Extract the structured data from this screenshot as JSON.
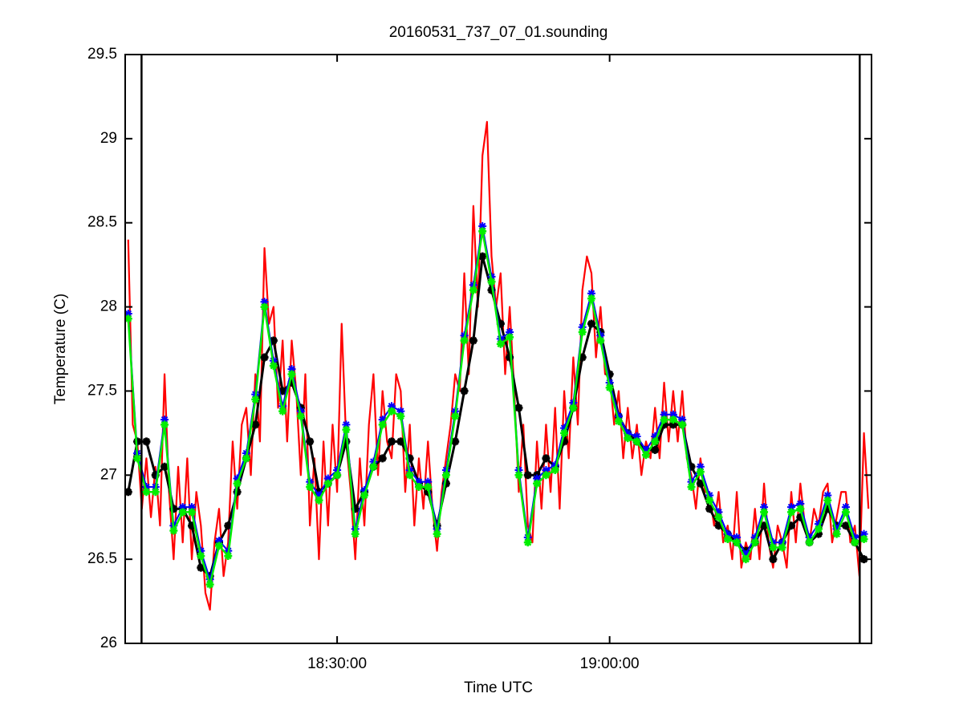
{
  "chart_data": {
    "type": "line",
    "title": "20160531_737_07_01.sounding",
    "x_label": "Time UTC",
    "y_label": "Temperature (C)",
    "xlim": [
      "18:06:40",
      "19:28:50"
    ],
    "xticks": [
      "18:30:00",
      "19:00:00"
    ],
    "ylim": [
      26,
      29.5
    ],
    "yticks": [
      26,
      26.5,
      27,
      27.5,
      28,
      28.5,
      29,
      29.5
    ],
    "vlines": [
      "18:08:28",
      "19:27:32"
    ],
    "x": [
      "18:07:00",
      "18:08:00",
      "18:09:00",
      "18:10:00",
      "18:11:00",
      "18:12:00",
      "18:13:00",
      "18:14:00",
      "18:15:00",
      "18:16:00",
      "18:17:00",
      "18:18:00",
      "18:19:00",
      "18:20:00",
      "18:21:00",
      "18:22:00",
      "18:23:00",
      "18:24:00",
      "18:25:00",
      "18:26:00",
      "18:27:00",
      "18:28:00",
      "18:29:00",
      "18:30:00",
      "18:31:00",
      "18:32:00",
      "18:33:00",
      "18:34:00",
      "18:35:00",
      "18:36:00",
      "18:37:00",
      "18:38:00",
      "18:39:00",
      "18:40:00",
      "18:41:00",
      "18:42:00",
      "18:43:00",
      "18:44:00",
      "18:45:00",
      "18:46:00",
      "18:47:00",
      "18:48:00",
      "18:49:00",
      "18:50:00",
      "18:51:00",
      "18:52:00",
      "18:53:00",
      "18:54:00",
      "18:55:00",
      "18:56:00",
      "18:57:00",
      "18:58:00",
      "18:59:00",
      "19:00:00",
      "19:01:00",
      "19:02:00",
      "19:03:00",
      "19:04:00",
      "19:05:00",
      "19:06:00",
      "19:07:00",
      "19:08:00",
      "19:09:00",
      "19:10:00",
      "19:11:00",
      "19:12:00",
      "19:13:00",
      "19:14:00",
      "19:15:00",
      "19:16:00",
      "19:17:00",
      "19:18:00",
      "19:19:00",
      "19:20:00",
      "19:21:00",
      "19:22:00",
      "19:23:00",
      "19:24:00",
      "19:25:00",
      "19:26:00",
      "19:27:00",
      "19:28:00"
    ],
    "series": [
      {
        "color": "#ff0000",
        "marker": "none",
        "linewidth": 2.2,
        "x": [
          "18:07:00",
          "18:07:30",
          "18:08:00",
          "18:08:30",
          "18:09:00",
          "18:09:30",
          "18:10:00",
          "18:10:30",
          "18:11:00",
          "18:11:30",
          "18:12:00",
          "18:12:30",
          "18:13:00",
          "18:13:30",
          "18:14:00",
          "18:14:30",
          "18:15:00",
          "18:15:30",
          "18:16:00",
          "18:16:30",
          "18:17:00",
          "18:17:30",
          "18:18:00",
          "18:18:30",
          "18:19:00",
          "18:19:30",
          "18:20:00",
          "18:20:30",
          "18:21:00",
          "18:21:30",
          "18:22:00",
          "18:22:30",
          "18:23:00",
          "18:23:30",
          "18:24:00",
          "18:24:30",
          "18:25:00",
          "18:25:30",
          "18:26:00",
          "18:26:30",
          "18:27:00",
          "18:27:30",
          "18:28:00",
          "18:28:30",
          "18:29:00",
          "18:29:30",
          "18:30:00",
          "18:30:30",
          "18:31:00",
          "18:31:30",
          "18:32:00",
          "18:32:30",
          "18:33:00",
          "18:33:30",
          "18:34:00",
          "18:34:30",
          "18:35:00",
          "18:35:30",
          "18:36:00",
          "18:36:30",
          "18:37:00",
          "18:37:30",
          "18:38:00",
          "18:38:30",
          "18:39:00",
          "18:39:30",
          "18:40:00",
          "18:40:30",
          "18:41:00",
          "18:41:30",
          "18:42:00",
          "18:42:30",
          "18:43:00",
          "18:43:30",
          "18:44:00",
          "18:44:30",
          "18:45:00",
          "18:45:30",
          "18:46:00",
          "18:46:30",
          "18:47:00",
          "18:47:30",
          "18:48:00",
          "18:48:30",
          "18:49:00",
          "18:49:30",
          "18:50:00",
          "18:50:30",
          "18:51:00",
          "18:51:30",
          "18:52:00",
          "18:52:30",
          "18:53:00",
          "18:53:30",
          "18:54:00",
          "18:54:30",
          "18:55:00",
          "18:55:30",
          "18:56:00",
          "18:56:30",
          "18:57:00",
          "18:57:30",
          "18:58:00",
          "18:58:30",
          "18:59:00",
          "18:59:30",
          "19:00:00",
          "19:00:30",
          "19:01:00",
          "19:01:30",
          "19:02:00",
          "19:02:30",
          "19:03:00",
          "19:03:30",
          "19:04:00",
          "19:04:30",
          "19:05:00",
          "19:05:30",
          "19:06:00",
          "19:06:30",
          "19:07:00",
          "19:07:30",
          "19:08:00",
          "19:08:30",
          "19:09:00",
          "19:09:30",
          "19:10:00",
          "19:10:30",
          "19:11:00",
          "19:11:30",
          "19:12:00",
          "19:12:30",
          "19:13:00",
          "19:13:30",
          "19:14:00",
          "19:14:30",
          "19:15:00",
          "19:15:30",
          "19:16:00",
          "19:16:30",
          "19:17:00",
          "19:17:30",
          "19:18:00",
          "19:18:30",
          "19:19:00",
          "19:19:30",
          "19:20:00",
          "19:20:30",
          "19:21:00",
          "19:21:30",
          "19:22:00",
          "19:22:30",
          "19:23:00",
          "19:23:30",
          "19:24:00",
          "19:24:30",
          "19:25:00",
          "19:25:30",
          "19:26:00",
          "19:26:30",
          "19:27:00",
          "19:27:30",
          "19:28:00",
          "19:28:30"
        ],
        "values": [
          28.4,
          27.3,
          27.2,
          26.8,
          27.1,
          26.75,
          27.05,
          26.7,
          27.6,
          26.9,
          26.5,
          27.05,
          26.6,
          27.1,
          26.5,
          26.9,
          26.7,
          26.3,
          26.2,
          26.6,
          26.8,
          26.4,
          26.6,
          27.2,
          26.8,
          27.3,
          27.4,
          27.0,
          27.6,
          27.2,
          28.35,
          27.9,
          28.0,
          27.4,
          27.8,
          27.2,
          27.8,
          27.5,
          27.0,
          27.6,
          26.7,
          27.1,
          26.5,
          27.2,
          26.7,
          27.3,
          26.9,
          27.9,
          27.2,
          26.9,
          26.5,
          27.1,
          26.7,
          27.3,
          27.6,
          27.0,
          27.5,
          27.2,
          27.1,
          27.6,
          27.5,
          26.9,
          27.3,
          26.7,
          27.1,
          26.8,
          27.2,
          26.8,
          26.55,
          26.9,
          27.1,
          27.3,
          27.6,
          27.5,
          28.2,
          27.6,
          28.6,
          28.0,
          28.9,
          29.1,
          28.3,
          28.0,
          28.2,
          27.6,
          28.0,
          27.5,
          26.9,
          27.3,
          26.7,
          26.6,
          27.2,
          26.8,
          27.3,
          26.9,
          27.4,
          26.8,
          27.5,
          27.1,
          27.7,
          27.3,
          28.1,
          28.3,
          28.2,
          27.7,
          28.0,
          27.6,
          27.6,
          27.3,
          27.5,
          27.1,
          27.4,
          27.1,
          27.3,
          27.0,
          27.2,
          27.1,
          27.4,
          27.1,
          27.55,
          27.2,
          27.5,
          27.2,
          27.5,
          27.1,
          27.0,
          26.8,
          27.1,
          26.9,
          26.9,
          26.7,
          26.9,
          26.6,
          26.7,
          26.5,
          26.9,
          26.45,
          26.6,
          26.5,
          26.8,
          26.5,
          26.95,
          26.6,
          26.45,
          26.7,
          26.6,
          26.45,
          26.9,
          26.6,
          26.95,
          26.7,
          26.6,
          26.8,
          26.7,
          26.9,
          26.95,
          26.6,
          26.75,
          26.9,
          26.9,
          26.6,
          26.7,
          26.4,
          27.25,
          26.8
        ]
      },
      {
        "color": "#000000",
        "marker": "*",
        "linewidth": 3,
        "values": [
          26.9,
          27.2,
          27.2,
          27.0,
          27.05,
          26.8,
          26.8,
          26.7,
          26.45,
          26.4,
          26.6,
          26.7,
          26.9,
          27.1,
          27.3,
          27.7,
          27.8,
          27.5,
          27.55,
          27.4,
          27.2,
          26.9,
          26.95,
          27.0,
          27.2,
          26.8,
          26.9,
          27.05,
          27.1,
          27.2,
          27.2,
          27.1,
          26.95,
          26.9,
          26.7,
          26.95,
          27.2,
          27.5,
          27.8,
          28.3,
          28.1,
          27.9,
          27.7,
          27.4,
          27.0,
          27.0,
          27.1,
          27.05,
          27.2,
          27.4,
          27.7,
          27.9,
          27.85,
          27.6,
          27.35,
          27.25,
          27.2,
          27.15,
          27.15,
          27.3,
          27.3,
          27.3,
          27.05,
          26.95,
          26.8,
          26.7,
          26.65,
          26.6,
          26.55,
          26.6,
          26.7,
          26.5,
          26.6,
          26.7,
          26.75,
          26.6,
          26.65,
          26.8,
          26.7,
          26.7,
          26.6,
          26.5
        ]
      },
      {
        "color": "#0000ff",
        "marker": "*",
        "linewidth": 2,
        "values": [
          27.96,
          27.13,
          26.93,
          26.93,
          27.33,
          26.7,
          26.81,
          26.81,
          26.55,
          26.38,
          26.61,
          26.55,
          26.98,
          27.13,
          27.48,
          28.03,
          27.68,
          27.41,
          27.63,
          27.38,
          26.96,
          26.88,
          26.98,
          27.03,
          27.3,
          26.68,
          26.91,
          27.08,
          27.33,
          27.41,
          27.38,
          27.03,
          26.96,
          26.96,
          26.68,
          27.03,
          27.38,
          27.83,
          28.13,
          28.48,
          28.18,
          27.81,
          27.85,
          27.03,
          26.63,
          26.98,
          27.03,
          27.06,
          27.28,
          27.43,
          27.88,
          28.08,
          27.83,
          27.55,
          27.35,
          27.25,
          27.23,
          27.15,
          27.23,
          27.36,
          27.36,
          27.33,
          26.96,
          27.05,
          26.88,
          26.78,
          26.65,
          26.63,
          26.53,
          26.63,
          26.81,
          26.6,
          26.6,
          26.81,
          26.83,
          26.63,
          26.71,
          26.88,
          26.68,
          26.81,
          26.63,
          26.65
        ]
      },
      {
        "color": "#00ee00",
        "marker": "*",
        "linewidth": 2.5,
        "values": [
          27.93,
          27.1,
          26.9,
          26.9,
          27.3,
          26.67,
          26.78,
          26.78,
          26.52,
          26.35,
          26.58,
          26.52,
          26.95,
          27.1,
          27.45,
          28.0,
          27.65,
          27.38,
          27.6,
          27.35,
          26.93,
          26.85,
          26.95,
          27.0,
          27.27,
          26.65,
          26.88,
          27.05,
          27.3,
          27.38,
          27.35,
          27.0,
          26.93,
          26.93,
          26.65,
          27.0,
          27.35,
          27.8,
          28.1,
          28.45,
          28.15,
          27.78,
          27.82,
          27.0,
          26.6,
          26.95,
          27.0,
          27.03,
          27.25,
          27.4,
          27.85,
          28.05,
          27.8,
          27.52,
          27.32,
          27.22,
          27.2,
          27.12,
          27.2,
          27.33,
          27.33,
          27.3,
          26.93,
          27.02,
          26.85,
          26.75,
          26.62,
          26.6,
          26.5,
          26.6,
          26.78,
          26.57,
          26.57,
          26.78,
          26.8,
          26.6,
          26.68,
          26.85,
          26.65,
          26.78,
          26.6,
          26.62
        ]
      }
    ]
  }
}
